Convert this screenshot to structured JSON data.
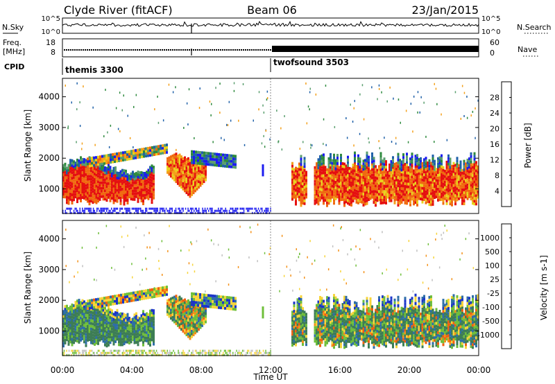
{
  "header": {
    "station": "Clyde River (fitACF)",
    "beam": "Beam 06",
    "date": "23/Jan/2015"
  },
  "noise_panel": {
    "left_label": "N.Sky",
    "right_label": "N.Search",
    "left_ticks": [
      "10^5",
      "10^0"
    ],
    "right_ticks": [
      "10^5",
      "10^0"
    ]
  },
  "freq_panel": {
    "left_label_line1": "Freq.",
    "left_label_line2": "[MHz]",
    "right_label": "Nave",
    "left_ticks": [
      "18",
      "8"
    ],
    "right_ticks": [
      "60",
      "0"
    ]
  },
  "cpid": {
    "label": "CPID",
    "segments": [
      {
        "name": "themis 3300",
        "start_hour": 0,
        "end_hour": 12
      },
      {
        "name": "twofsound 3503",
        "start_hour": 12,
        "end_hour": 24
      }
    ]
  },
  "x_axis": {
    "label": "Time UT",
    "ticks": [
      "00:00",
      "04:00",
      "08:00",
      "12:00",
      "16:00",
      "20:00",
      "00:00"
    ]
  },
  "colors": {
    "power": [
      "#1c1cf0",
      "#1f60a8",
      "#2e8a3e",
      "#5a9e6e",
      "#e8d21c",
      "#f4a01a",
      "#f06a10",
      "#e51010"
    ],
    "velocity": [
      "#1c36c8",
      "#2e6ea8",
      "#3d7d55",
      "#6fbf3a",
      "#c0c0c0",
      "#f7d43a",
      "#f4921a",
      "#f06010",
      "#e51010"
    ]
  },
  "chart_data": [
    {
      "type": "heatmap",
      "title": "Power",
      "x": "Time UT (hours 00:00 to 24:00)",
      "ylabel": "Slant Range [km]",
      "ylim": [
        200,
        4600
      ],
      "yticks": [
        "1000",
        "2000",
        "3000",
        "4000"
      ],
      "colorbar_label": "Power [dB]",
      "colorbar_ticks": [
        "4",
        "8",
        "12",
        "16",
        "20",
        "24",
        "28"
      ],
      "colorbar_range": [
        0,
        32
      ]
    },
    {
      "type": "heatmap",
      "title": "Velocity",
      "x": "Time UT (hours 00:00 to 24:00)",
      "ylabel": "Slant Range [km]",
      "ylim": [
        200,
        4600
      ],
      "yticks": [
        "1000",
        "2000",
        "3000",
        "4000"
      ],
      "colorbar_label": "Velocity [m s-1]",
      "colorbar_ticks": [
        "1000",
        "500",
        "100",
        "25",
        "-25",
        "-100",
        "-500",
        "-1000"
      ]
    }
  ]
}
